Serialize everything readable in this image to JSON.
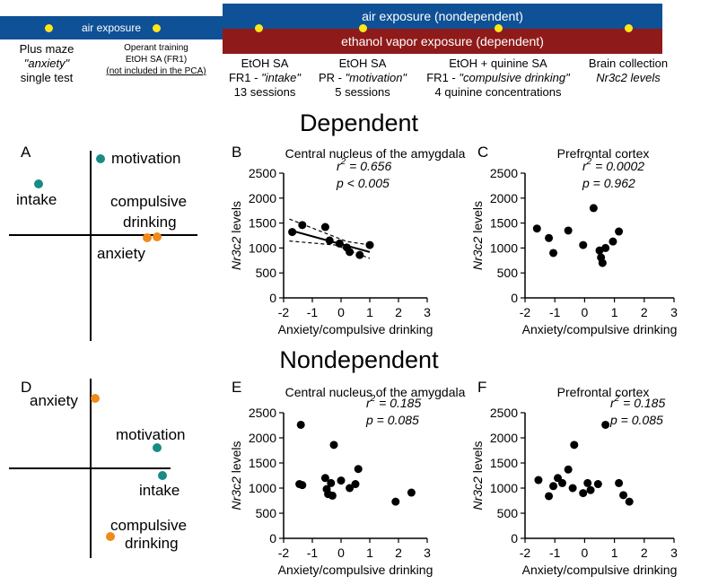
{
  "timeline": {
    "air_exposure_short": "air exposure",
    "air_exposure_long": "air exposure (nondependent)",
    "ethanol_vapor": "ethanol vapor exposure (dependent)",
    "colors": {
      "air": "#0f5196",
      "ethanol": "#8f1a1a",
      "marker": "#ffe61a"
    },
    "stage1": {
      "line1": "Plus maze",
      "line2": "\"anxiety\"",
      "line3": "single test"
    },
    "stage2": {
      "line1": "Operant training",
      "line2": "EtOH SA (FR1)",
      "line3": "(not included in the PCA)"
    },
    "stage3": {
      "line1": "EtOH SA",
      "line2a": "FR1 - ",
      "line2b": "\"intake\"",
      "line3": "13 sessions"
    },
    "stage4": {
      "line1": "EtOH SA",
      "line2a": "PR - ",
      "line2b": "\"motivation\"",
      "line3": "5 sessions"
    },
    "stage5": {
      "line1": "EtOH + quinine SA",
      "line2a": "FR1 - ",
      "line2b": "\"compulsive drinking\"",
      "line3": "4 quinine concentrations"
    },
    "stage6": {
      "line1": "Brain collection",
      "line2": "Nr3c2 levels"
    }
  },
  "sections": {
    "dependent": "Dependent",
    "nondependent": "Nondependent"
  },
  "panels": {
    "A": "A",
    "B": "B",
    "C": "C",
    "D": "D",
    "E": "E",
    "F": "F"
  },
  "chart_data": [
    {
      "id": "A",
      "type": "scatter",
      "title": "",
      "points": [
        {
          "label": "motivation",
          "x": 0.15,
          "y": 0.9,
          "color": "#1a8a86"
        },
        {
          "label": "intake",
          "x": -0.6,
          "y": 0.62,
          "color": "#1a8a86"
        },
        {
          "label": "anxiety",
          "x": 0.6,
          "y": 0.0,
          "color": "#f08a1c"
        },
        {
          "label": "compulsive drinking",
          "x": 0.7,
          "y": 0.0,
          "color": "#f08a1c"
        }
      ],
      "labels": {
        "motivation": "motivation",
        "intake": "intake",
        "compulsive1": "compulsive",
        "compulsive2": "drinking",
        "anxiety": "anxiety"
      }
    },
    {
      "id": "B",
      "type": "scatter",
      "title": "Central nucleus of the amygdala",
      "xlabel": "Anxiety/compulsive drinking",
      "ylabel_italic": "Nr3c2",
      "ylabel_rest": " levels",
      "xlim": [
        -2,
        3
      ],
      "ylim": [
        0,
        2500
      ],
      "xticks": [
        -2,
        -1,
        0,
        1,
        2,
        3
      ],
      "yticks": [
        0,
        500,
        1000,
        1500,
        2000,
        2500
      ],
      "stat_r2": "= 0.656",
      "stat_p": "p < 0.005",
      "points": [
        {
          "x": -1.7,
          "y": 1320
        },
        {
          "x": -1.35,
          "y": 1460
        },
        {
          "x": -0.55,
          "y": 1420
        },
        {
          "x": -0.4,
          "y": 1150
        },
        {
          "x": -0.05,
          "y": 1090
        },
        {
          "x": 0.2,
          "y": 1010
        },
        {
          "x": 0.3,
          "y": 920
        },
        {
          "x": 0.65,
          "y": 860
        },
        {
          "x": 1.0,
          "y": 1060
        }
      ],
      "fit_line": [
        [
          -1.8,
          1360
        ],
        [
          1.0,
          920
        ]
      ],
      "ci_upper": [
        [
          -1.8,
          1580
        ],
        [
          0.2,
          1130
        ],
        [
          1.0,
          1060
        ]
      ],
      "ci_lower": [
        [
          -1.8,
          1140
        ],
        [
          -0.2,
          1060
        ],
        [
          1.0,
          790
        ]
      ]
    },
    {
      "id": "C",
      "type": "scatter",
      "title": "Prefrontal cortex",
      "xlabel": "Anxiety/compulsive drinking",
      "ylabel_italic": "Nr3c2",
      "ylabel_rest": " levels",
      "xlim": [
        -2,
        3
      ],
      "ylim": [
        0,
        2500
      ],
      "xticks": [
        -2,
        -1,
        0,
        1,
        2,
        3
      ],
      "yticks": [
        0,
        500,
        1000,
        1500,
        2000,
        2500
      ],
      "stat_r2": "= 0.0002",
      "stat_p": "p = 0.962",
      "points": [
        {
          "x": -1.6,
          "y": 1390
        },
        {
          "x": -1.2,
          "y": 1200
        },
        {
          "x": -1.05,
          "y": 900
        },
        {
          "x": -0.55,
          "y": 1350
        },
        {
          "x": -0.05,
          "y": 1060
        },
        {
          "x": 0.3,
          "y": 1800
        },
        {
          "x": 0.5,
          "y": 950
        },
        {
          "x": 0.55,
          "y": 810
        },
        {
          "x": 0.6,
          "y": 700
        },
        {
          "x": 0.7,
          "y": 1000
        },
        {
          "x": 0.95,
          "y": 1130
        },
        {
          "x": 1.15,
          "y": 1330
        }
      ]
    },
    {
      "id": "D",
      "type": "scatter",
      "title": "",
      "points": [
        {
          "label": "anxiety",
          "x": 0.03,
          "y": 0.78,
          "color": "#f08a1c"
        },
        {
          "label": "motivation",
          "x": 0.78,
          "y": 0.28,
          "color": "#1a8a86"
        },
        {
          "label": "intake",
          "x": 0.85,
          "y": -0.02,
          "color": "#1a8a86"
        },
        {
          "label": "compulsive drinking",
          "x": 0.2,
          "y": -0.72,
          "color": "#f08a1c"
        }
      ],
      "labels": {
        "anxiety": "anxiety",
        "motivation": "motivation",
        "intake": "intake",
        "compulsive1": "compulsive",
        "compulsive2": "drinking"
      }
    },
    {
      "id": "E",
      "type": "scatter",
      "title": "Central nucleus of the amygdala",
      "xlabel": "Anxiety/compulsive drinking",
      "ylabel_italic": "Nr3c2",
      "ylabel_rest": " levels",
      "xlim": [
        -2,
        3
      ],
      "ylim": [
        0,
        2500
      ],
      "xticks": [
        -2,
        -1,
        0,
        1,
        2,
        3
      ],
      "yticks": [
        0,
        500,
        1000,
        1500,
        2000,
        2500
      ],
      "stat_r2": "= 0.185",
      "stat_p": "p = 0.085",
      "points": [
        {
          "x": -1.4,
          "y": 2260
        },
        {
          "x": -1.45,
          "y": 1080
        },
        {
          "x": -1.35,
          "y": 1060
        },
        {
          "x": -0.55,
          "y": 1200
        },
        {
          "x": -0.5,
          "y": 980
        },
        {
          "x": -0.45,
          "y": 880
        },
        {
          "x": -0.35,
          "y": 1100
        },
        {
          "x": -0.3,
          "y": 850
        },
        {
          "x": -0.25,
          "y": 1860
        },
        {
          "x": 0.0,
          "y": 1150
        },
        {
          "x": 0.3,
          "y": 1000
        },
        {
          "x": 0.5,
          "y": 1080
        },
        {
          "x": 0.6,
          "y": 1380
        },
        {
          "x": 1.9,
          "y": 730
        },
        {
          "x": 2.45,
          "y": 910
        }
      ]
    },
    {
      "id": "F",
      "type": "scatter",
      "title": "Prefrontal cortex",
      "xlabel": "Anxiety/compulsive drinking",
      "ylabel_italic": "Nr3c2",
      "ylabel_rest": " levels",
      "xlim": [
        -2,
        3
      ],
      "ylim": [
        0,
        2500
      ],
      "xticks": [
        -2,
        -1,
        0,
        1,
        2,
        3
      ],
      "yticks": [
        0,
        500,
        1000,
        1500,
        2000,
        2500
      ],
      "stat_r2": "= 0.185",
      "stat_p": "p = 0.085",
      "points": [
        {
          "x": -1.55,
          "y": 1160
        },
        {
          "x": -1.2,
          "y": 840
        },
        {
          "x": -1.05,
          "y": 1040
        },
        {
          "x": -0.9,
          "y": 1200
        },
        {
          "x": -0.75,
          "y": 1100
        },
        {
          "x": -0.55,
          "y": 1370
        },
        {
          "x": -0.35,
          "y": 1860
        },
        {
          "x": -0.4,
          "y": 1000
        },
        {
          "x": -0.05,
          "y": 900
        },
        {
          "x": 0.1,
          "y": 1100
        },
        {
          "x": 0.45,
          "y": 1080
        },
        {
          "x": 0.7,
          "y": 2260
        },
        {
          "x": 1.15,
          "y": 1100
        },
        {
          "x": 1.3,
          "y": 860
        },
        {
          "x": 1.5,
          "y": 730
        },
        {
          "x": 0.2,
          "y": 960
        }
      ]
    }
  ]
}
